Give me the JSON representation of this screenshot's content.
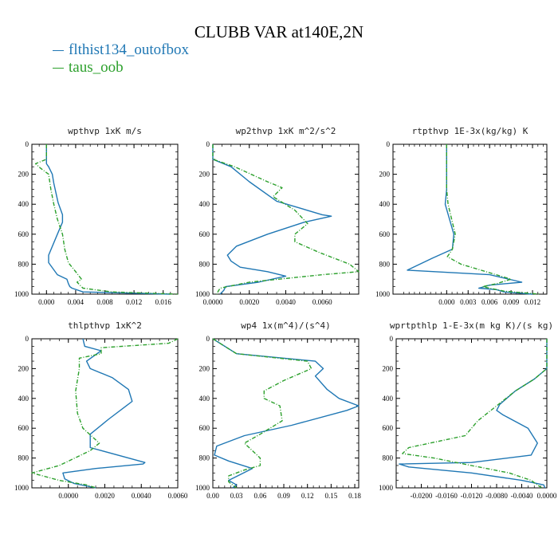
{
  "title": "CLUBB VAR at140E,2N",
  "legend": [
    {
      "label": "flthist134_outofbox",
      "color": "#1f77b4",
      "dash": ""
    },
    {
      "label": "taus_oob",
      "color": "#2ca02c",
      "dash": "5,2,1,2"
    }
  ],
  "chart_data": [
    {
      "type": "line",
      "title": "wpthvp   1xK m/s",
      "xlim": [
        -0.002,
        0.018
      ],
      "ylim": [
        1000,
        0
      ],
      "xticks": [
        "0.000",
        "0.004",
        "0.008",
        "0.012",
        "0.016"
      ],
      "xtick_values": [
        0,
        0.004,
        0.008,
        0.012,
        0.016
      ],
      "yticks": [
        "0",
        "200",
        "400",
        "600",
        "800",
        "1000"
      ],
      "ytick_values": [
        0,
        200,
        400,
        600,
        800,
        1000
      ],
      "series": [
        {
          "name": "flthist134_outofbox",
          "x": [
            0,
            0,
            0.0003,
            0.0008,
            0.001,
            0.0016,
            0.0022,
            0.0022,
            0.0015,
            0.0003,
            0.0003,
            0.0015,
            0.0028,
            0.003,
            0.0032,
            0.0035,
            0.005,
            0.017
          ],
          "y": [
            0,
            130,
            150,
            200,
            260,
            390,
            470,
            520,
            600,
            740,
            790,
            870,
            900,
            930,
            950,
            960,
            985,
            1000
          ]
        },
        {
          "name": "taus_oob",
          "x": [
            0,
            0,
            -0.0015,
            -0.0008,
            0.0003,
            0.0006,
            0.001,
            0.0015,
            0.0022,
            0.0025,
            0.003,
            0.004,
            0.0048,
            0.0042,
            0.005,
            0.009,
            0.018
          ],
          "y": [
            0,
            100,
            130,
            160,
            200,
            300,
            400,
            500,
            600,
            700,
            790,
            850,
            900,
            920,
            960,
            985,
            1000
          ]
        }
      ]
    },
    {
      "type": "line",
      "title": "wp2thvp   1xK m^2/s^2",
      "xlim": [
        0,
        0.008
      ],
      "ylim": [
        1000,
        0
      ],
      "xticks": [
        "0.0000",
        "0.0020",
        "0.0040",
        "0.0060"
      ],
      "xtick_values": [
        0,
        0.002,
        0.004,
        0.006
      ],
      "yticks": [
        "0",
        "200",
        "400",
        "600",
        "800",
        "1000"
      ],
      "ytick_values": [
        0,
        200,
        400,
        600,
        800,
        1000
      ],
      "series": [
        {
          "name": "flthist134_outofbox",
          "x": [
            0,
            0,
            0.001,
            0.002,
            0.0035,
            0.006,
            0.0065,
            0.005,
            0.003,
            0.0013,
            0.0008,
            0.001,
            0.0015,
            0.003,
            0.004,
            0.0025,
            0.0007,
            0.0006,
            0.0004
          ],
          "y": [
            0,
            100,
            150,
            250,
            380,
            470,
            480,
            520,
            600,
            680,
            740,
            780,
            820,
            850,
            880,
            920,
            950,
            975,
            1000
          ]
        },
        {
          "name": "taus_oob",
          "x": [
            0,
            0,
            0.0012,
            0.003,
            0.0038,
            0.0033,
            0.0045,
            0.0052,
            0.0045,
            0.0045,
            0.0058,
            0.0075,
            0.008,
            0.006,
            0.002,
            0.0004,
            0.0002
          ],
          "y": [
            0,
            100,
            150,
            250,
            290,
            350,
            440,
            530,
            600,
            650,
            720,
            800,
            850,
            870,
            920,
            960,
            1000
          ]
        }
      ]
    },
    {
      "type": "line",
      "title": "rtpthvp   1E-3x(kg/kg) K",
      "xlim": [
        -0.0075,
        0.014
      ],
      "ylim": [
        1000,
        0
      ],
      "xticks": [
        "0.000",
        "0.003",
        "0.006",
        "0.009",
        "0.012"
      ],
      "xtick_values": [
        0,
        0.003,
        0.006,
        0.009,
        0.012
      ],
      "yticks": [
        "0",
        "200",
        "400",
        "600",
        "800",
        "1000"
      ],
      "ytick_values": [
        0,
        200,
        400,
        600,
        800,
        1000
      ],
      "series": [
        {
          "name": "flthist134_outofbox",
          "x": [
            0,
            0,
            -0.0002,
            0.001,
            0.0008,
            -0.002,
            -0.0055,
            0.006,
            0.0105,
            0.006,
            0.0045,
            0.007,
            0.008,
            0.012
          ],
          "y": [
            0,
            300,
            400,
            600,
            700,
            760,
            840,
            870,
            920,
            940,
            960,
            970,
            985,
            1000
          ]
        },
        {
          "name": "taus_oob",
          "x": [
            0,
            0,
            0.0002,
            0.0012,
            0.0008,
            0.0001,
            0.002,
            0.0055,
            0.009,
            0.007,
            0.005,
            0.008,
            0.013
          ],
          "y": [
            0,
            300,
            400,
            600,
            700,
            750,
            800,
            850,
            900,
            930,
            950,
            980,
            1000
          ]
        }
      ]
    },
    {
      "type": "line",
      "title": "thlpthvp   1xK^2",
      "xlim": [
        -0.002,
        0.006
      ],
      "ylim": [
        1000,
        0
      ],
      "xticks": [
        "0.0000",
        "0.0020",
        "0.0040",
        "0.0060"
      ],
      "xtick_values": [
        0,
        0.002,
        0.004,
        0.006
      ],
      "yticks": [
        "0",
        "200",
        "400",
        "600",
        "800",
        "1000"
      ],
      "ytick_values": [
        0,
        200,
        400,
        600,
        800,
        1000
      ],
      "series": [
        {
          "name": "flthist134_outofbox",
          "x": [
            0.0008,
            0.0009,
            0.0018,
            0.001,
            0.0012,
            0.0024,
            0.0033,
            0.0035,
            0.0022,
            0.0012,
            0.0012,
            0.0042,
            0.0041,
            0.0015,
            -0.0003,
            -0.0002,
            0.0003,
            0.0015
          ],
          "y": [
            0,
            50,
            80,
            150,
            200,
            260,
            340,
            420,
            540,
            640,
            730,
            830,
            840,
            870,
            900,
            940,
            970,
            1000
          ]
        },
        {
          "name": "taus_oob",
          "x": [
            0.006,
            0.0055,
            0.0018,
            0.0018,
            0.0006,
            0.0006,
            0.0004,
            0.0005,
            0.0008,
            0.0017,
            0.0012,
            -0.0005,
            -0.002,
            -0.0005,
            0.001,
            0.0015
          ],
          "y": [
            0,
            30,
            60,
            100,
            130,
            200,
            350,
            500,
            600,
            700,
            750,
            850,
            900,
            950,
            980,
            1000
          ]
        }
      ]
    },
    {
      "type": "line",
      "title": "wp4   1x(m^4)/(s^4)",
      "xlim": [
        0,
        0.185
      ],
      "ylim": [
        1000,
        0
      ],
      "xticks": [
        "0.00",
        "0.03",
        "0.06",
        "0.09",
        "0.12",
        "0.15",
        "0.18"
      ],
      "xtick_values": [
        0,
        0.03,
        0.06,
        0.09,
        0.12,
        0.15,
        0.18
      ],
      "yticks": [
        "0",
        "200",
        "400",
        "600",
        "800",
        "1000"
      ],
      "ytick_values": [
        0,
        200,
        400,
        600,
        800,
        1000
      ],
      "series": [
        {
          "name": "flthist134_outofbox",
          "x": [
            0,
            0.03,
            0.13,
            0.14,
            0.13,
            0.145,
            0.16,
            0.185,
            0.17,
            0.1,
            0.04,
            0.005,
            0.002,
            0.02,
            0.05,
            0.035,
            0.02,
            0.03,
            0.025
          ],
          "y": [
            0,
            100,
            150,
            200,
            250,
            340,
            400,
            450,
            480,
            580,
            650,
            720,
            780,
            820,
            870,
            910,
            950,
            980,
            1000
          ]
        },
        {
          "name": "taus_oob",
          "x": [
            0,
            0.03,
            0.12,
            0.125,
            0.09,
            0.065,
            0.065,
            0.085,
            0.088,
            0.06,
            0.04,
            0.05,
            0.06,
            0.06,
            0.04,
            0.02,
            0.02,
            0.03
          ],
          "y": [
            0,
            100,
            150,
            200,
            280,
            350,
            400,
            450,
            550,
            640,
            700,
            750,
            800,
            850,
            880,
            920,
            960,
            1000
          ]
        }
      ]
    },
    {
      "type": "line",
      "title": "wprtpthlp   1-E-3x(m kg K)/(s kg)",
      "xlim": [
        -0.024,
        0
      ],
      "ylim": [
        1000,
        0
      ],
      "xticks": [
        "-0.0200",
        "-0.0160",
        "-0.0120",
        "-0.0080",
        "-0.0040",
        "0.0000"
      ],
      "xtick_values": [
        -0.02,
        -0.016,
        -0.012,
        -0.008,
        -0.004,
        0
      ],
      "yticks": [
        "0",
        "200",
        "400",
        "600",
        "800",
        "1000"
      ],
      "ytick_values": [
        0,
        200,
        400,
        600,
        800,
        1000
      ],
      "series": [
        {
          "name": "flthist134_outofbox",
          "x": [
            0,
            0,
            -0.002,
            -0.005,
            -0.0075,
            -0.008,
            -0.007,
            -0.003,
            -0.0015,
            -0.0025,
            -0.012,
            -0.0235,
            -0.022,
            -0.012,
            -0.004,
            -0.0005,
            -0.0003
          ],
          "y": [
            0,
            200,
            270,
            350,
            440,
            480,
            510,
            600,
            700,
            780,
            830,
            840,
            860,
            900,
            950,
            980,
            1000
          ]
        },
        {
          "name": "taus_oob",
          "x": [
            0,
            0,
            -0.002,
            -0.005,
            -0.008,
            -0.011,
            -0.013,
            -0.022,
            -0.023,
            -0.018,
            -0.012,
            -0.006,
            -0.0025,
            -0.0015,
            -0.0008
          ],
          "y": [
            0,
            200,
            270,
            350,
            450,
            550,
            650,
            730,
            770,
            800,
            850,
            900,
            950,
            980,
            1000
          ]
        }
      ]
    }
  ]
}
